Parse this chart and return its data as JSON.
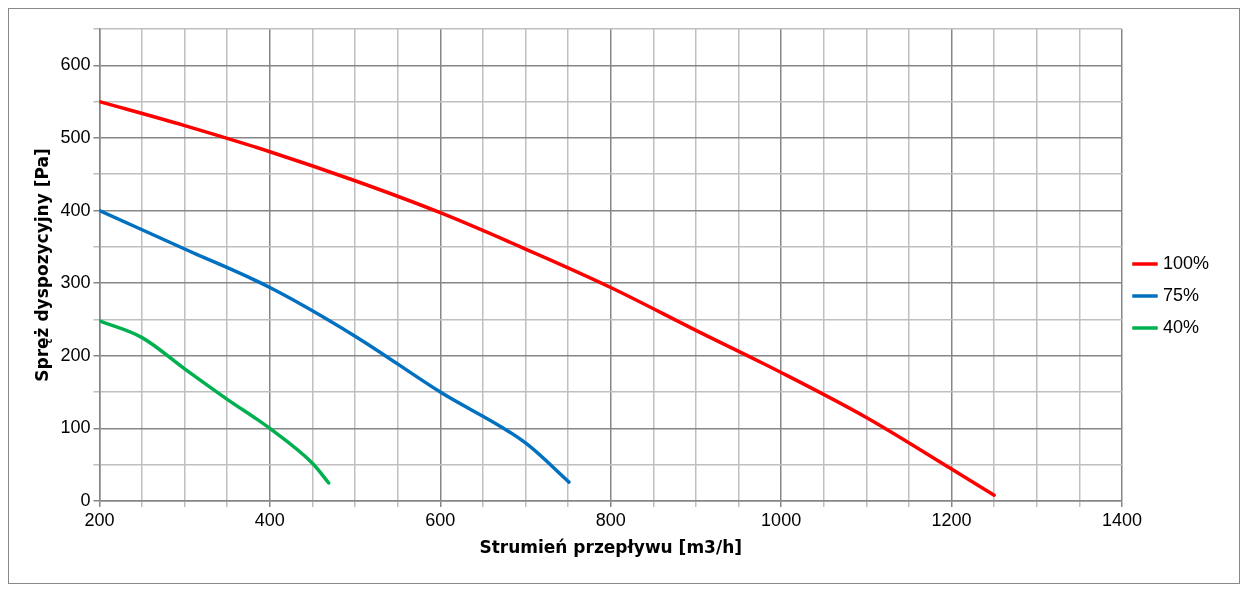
{
  "chart_data": {
    "type": "line",
    "xlabel": "Strumień przepływu [m3/h]",
    "ylabel": "Spręż dyspozycyjny [Pa]",
    "xlim": [
      200,
      1400
    ],
    "ylim": [
      0,
      650
    ],
    "xticks": [
      200,
      {
        "value": 250,
        "label": null
      },
      {
        "value": 300,
        "label": null
      },
      {
        "value": 350,
        "label": null
      },
      400,
      {
        "value": 450,
        "label": null
      },
      {
        "value": 500,
        "label": null
      },
      {
        "value": 550,
        "label": null
      },
      600,
      {
        "value": 650,
        "label": null
      },
      {
        "value": 700,
        "label": null
      },
      {
        "value": 750,
        "label": null
      },
      800,
      {
        "value": 850,
        "label": null
      },
      {
        "value": 900,
        "label": null
      },
      {
        "value": 950,
        "label": null
      },
      1000,
      {
        "value": 1050,
        "label": null
      },
      {
        "value": 1100,
        "label": null
      },
      {
        "value": 1150,
        "label": null
      },
      1200,
      {
        "value": 1250,
        "label": null
      },
      {
        "value": 1300,
        "label": null
      },
      {
        "value": 1350,
        "label": null
      },
      1400
    ],
    "yticks": [
      0,
      {
        "value": 50,
        "label": null
      },
      100,
      {
        "value": 150,
        "label": null
      },
      200,
      {
        "value": 250,
        "label": null
      },
      300,
      {
        "value": 350,
        "label": null
      },
      400,
      {
        "value": 450,
        "label": null
      },
      500,
      {
        "value": 550,
        "label": null
      },
      600,
      {
        "value": 650,
        "label": null
      }
    ],
    "grid": true,
    "legend": "right",
    "marker": "none",
    "line_style": "solid",
    "series": [
      {
        "name": "100%",
        "color": "#ff0000",
        "x": [
          200,
          300,
          400,
          500,
          600,
          700,
          800,
          900,
          1000,
          1100,
          1200,
          1250
        ],
        "values": [
          550,
          517,
          481,
          441,
          397,
          347,
          294,
          235,
          177,
          115,
          44,
          8
        ]
      },
      {
        "name": "75%",
        "color": "#0070c0",
        "x": [
          200,
          300,
          400,
          500,
          600,
          700,
          751
        ],
        "values": [
          400,
          347,
          294,
          227,
          150,
          80,
          26
        ]
      },
      {
        "name": "40%",
        "color": "#00b050",
        "x": [
          200,
          250,
          300,
          350,
          400,
          450,
          469
        ],
        "values": [
          248,
          225,
          182,
          140,
          100,
          52,
          25
        ]
      }
    ]
  }
}
